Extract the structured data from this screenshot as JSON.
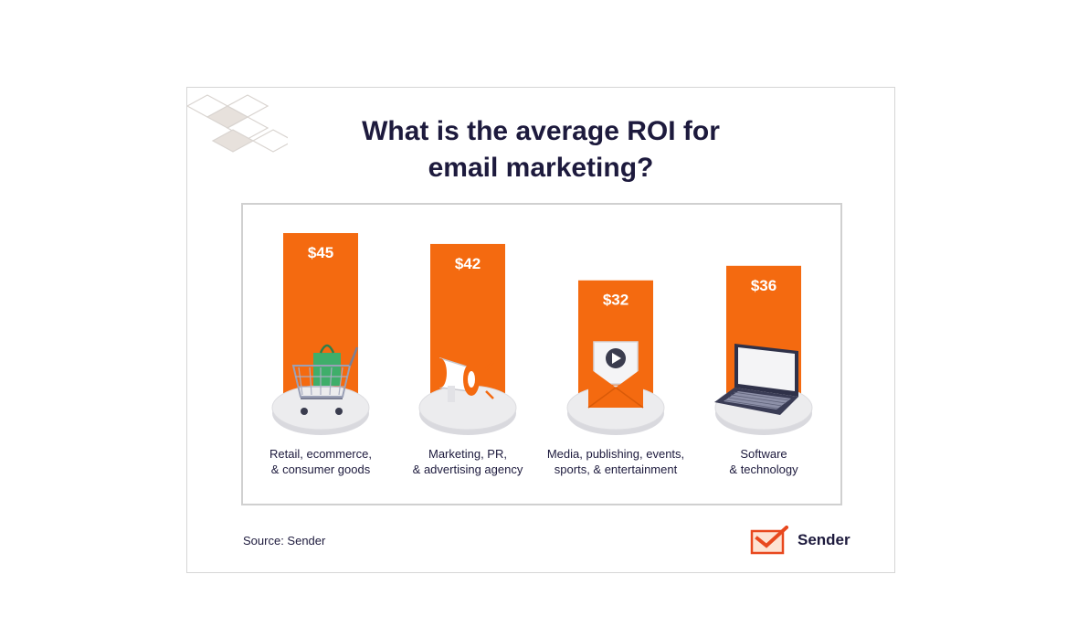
{
  "title_lines": [
    "What is the average ROI for",
    "email marketing?"
  ],
  "source": "Source: Sender",
  "brand": {
    "name": "Sender",
    "logo_icon": "sender-checkmark-logo-icon"
  },
  "colors": {
    "bar": "#f46a10",
    "title": "#1d1a3d",
    "panel_border": "#d0d0d0",
    "pedestal": "#ececee"
  },
  "chart_data": {
    "type": "bar",
    "title": "What is the average ROI for email marketing?",
    "categories": [
      [
        "Retail, ecommerce,",
        "& consumer goods"
      ],
      [
        "Marketing, PR,",
        "& advertising agency"
      ],
      [
        "Media, publishing, events,",
        "sports, & entertainment"
      ],
      [
        "Software",
        "& technology"
      ]
    ],
    "values": [
      45,
      42,
      32,
      36
    ],
    "value_labels": [
      "$45",
      "$42",
      "$32",
      "$36"
    ],
    "icons": [
      "shopping-cart-icon",
      "megaphone-icon",
      "email-envelope-icon",
      "laptop-icon"
    ],
    "xlabel": "",
    "ylabel": "",
    "ylim": [
      0,
      45
    ],
    "grid": false,
    "legend": "none"
  }
}
